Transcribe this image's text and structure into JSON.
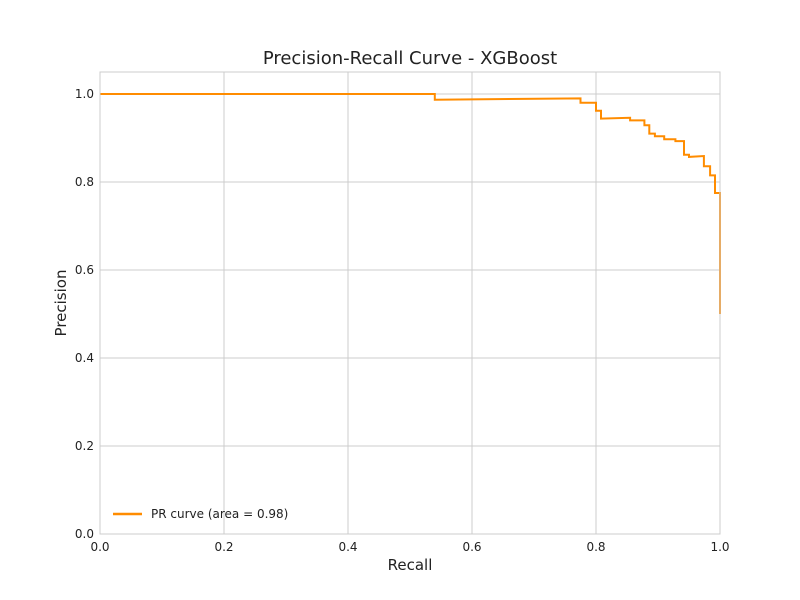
{
  "chart_data": {
    "type": "line",
    "title": "Precision-Recall Curve - XGBoost",
    "xlabel": "Recall",
    "ylabel": "Precision",
    "xlim": [
      0.0,
      1.0
    ],
    "ylim": [
      0.0,
      1.05
    ],
    "xticks": [
      0.0,
      0.2,
      0.4,
      0.6,
      0.8,
      1.0
    ],
    "xtick_labels": [
      "0.0",
      "0.2",
      "0.4",
      "0.6",
      "0.8",
      "1.0"
    ],
    "yticks": [
      0.0,
      0.2,
      0.4,
      0.6,
      0.8,
      1.0
    ],
    "ytick_labels": [
      "0.0",
      "0.2",
      "0.4",
      "0.6",
      "0.8",
      "1.0"
    ],
    "grid": true,
    "legend_position": "lower-left",
    "series": [
      {
        "name": "PR curve (area = 0.98)",
        "color": "#ff8c00",
        "points": [
          [
            0.0,
            1.0
          ],
          [
            0.54,
            1.0
          ],
          [
            0.54,
            0.987
          ],
          [
            0.775,
            0.99
          ],
          [
            0.775,
            0.98
          ],
          [
            0.8,
            0.98
          ],
          [
            0.8,
            0.962
          ],
          [
            0.808,
            0.962
          ],
          [
            0.808,
            0.944
          ],
          [
            0.855,
            0.946
          ],
          [
            0.855,
            0.94
          ],
          [
            0.878,
            0.94
          ],
          [
            0.878,
            0.929
          ],
          [
            0.886,
            0.929
          ],
          [
            0.886,
            0.91
          ],
          [
            0.895,
            0.91
          ],
          [
            0.895,
            0.904
          ],
          [
            0.91,
            0.904
          ],
          [
            0.91,
            0.897
          ],
          [
            0.928,
            0.897
          ],
          [
            0.928,
            0.893
          ],
          [
            0.942,
            0.893
          ],
          [
            0.942,
            0.862
          ],
          [
            0.95,
            0.862
          ],
          [
            0.95,
            0.857
          ],
          [
            0.974,
            0.859
          ],
          [
            0.974,
            0.836
          ],
          [
            0.984,
            0.836
          ],
          [
            0.984,
            0.815
          ],
          [
            0.992,
            0.815
          ],
          [
            0.992,
            0.775
          ],
          [
            0.999,
            0.775
          ],
          [
            1.0,
            0.775
          ],
          [
            1.0,
            0.5
          ]
        ]
      }
    ]
  }
}
